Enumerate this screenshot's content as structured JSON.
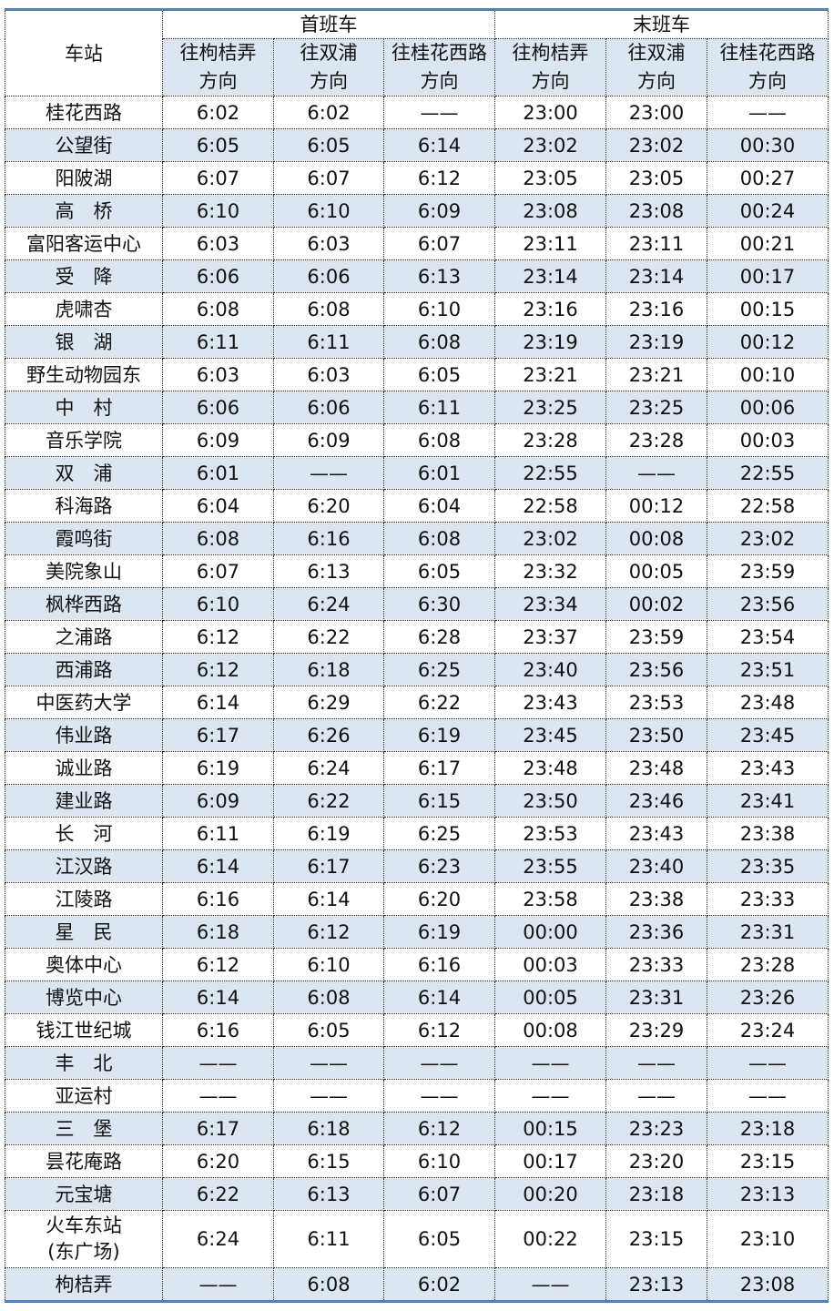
{
  "header": {
    "station": "车站",
    "groups": [
      "首班车",
      "末班车"
    ],
    "directions": [
      [
        "往枸桔弄",
        "方向"
      ],
      [
        "往双浦",
        "方向"
      ],
      [
        "往桂花西路",
        "方向"
      ],
      [
        "往枸桔弄",
        "方向"
      ],
      [
        "往双浦",
        "方向"
      ],
      [
        "往桂花西路",
        "方向"
      ]
    ]
  },
  "rows": [
    {
      "station": "桂花西路",
      "times": [
        "6:02",
        "6:02",
        "——",
        "23:00",
        "23:00",
        "——"
      ]
    },
    {
      "station": "公望街",
      "times": [
        "6:05",
        "6:05",
        "6:14",
        "23:02",
        "23:02",
        "00:30"
      ]
    },
    {
      "station": "阳陂湖",
      "times": [
        "6:07",
        "6:07",
        "6:12",
        "23:05",
        "23:05",
        "00:27"
      ]
    },
    {
      "station": "高　桥",
      "times": [
        "6:10",
        "6:10",
        "6:09",
        "23:08",
        "23:08",
        "00:24"
      ]
    },
    {
      "station": "富阳客运中心",
      "times": [
        "6:03",
        "6:03",
        "6:07",
        "23:11",
        "23:11",
        "00:21"
      ]
    },
    {
      "station": "受　降",
      "times": [
        "6:06",
        "6:06",
        "6:13",
        "23:14",
        "23:14",
        "00:17"
      ]
    },
    {
      "station": "虎啸杏",
      "times": [
        "6:08",
        "6:08",
        "6:10",
        "23:16",
        "23:16",
        "00:15"
      ]
    },
    {
      "station": "银　湖",
      "times": [
        "6:11",
        "6:11",
        "6:08",
        "23:19",
        "23:19",
        "00:12"
      ]
    },
    {
      "station": "野生动物园东",
      "times": [
        "6:03",
        "6:03",
        "6:05",
        "23:21",
        "23:21",
        "00:10"
      ]
    },
    {
      "station": "中　村",
      "times": [
        "6:06",
        "6:06",
        "6:11",
        "23:25",
        "23:25",
        "00:06"
      ]
    },
    {
      "station": "音乐学院",
      "times": [
        "6:09",
        "6:09",
        "6:08",
        "23:28",
        "23:28",
        "00:03"
      ]
    },
    {
      "station": "双　浦",
      "times": [
        "6:01",
        "——",
        "6:01",
        "22:55",
        "——",
        "22:55"
      ]
    },
    {
      "station": "科海路",
      "times": [
        "6:04",
        "6:20",
        "6:04",
        "22:58",
        "00:12",
        "22:58"
      ]
    },
    {
      "station": "霞鸣街",
      "times": [
        "6:08",
        "6:16",
        "6:08",
        "23:02",
        "00:08",
        "23:02"
      ]
    },
    {
      "station": "美院象山",
      "times": [
        "6:07",
        "6:13",
        "6:05",
        "23:32",
        "00:05",
        "23:59"
      ]
    },
    {
      "station": "枫桦西路",
      "times": [
        "6:10",
        "6:24",
        "6:30",
        "23:34",
        "00:02",
        "23:56"
      ]
    },
    {
      "station": "之浦路",
      "times": [
        "6:12",
        "6:22",
        "6:28",
        "23:37",
        "23:59",
        "23:54"
      ]
    },
    {
      "station": "西浦路",
      "times": [
        "6:12",
        "6:18",
        "6:25",
        "23:40",
        "23:56",
        "23:51"
      ]
    },
    {
      "station": "中医药大学",
      "times": [
        "6:14",
        "6:29",
        "6:22",
        "23:43",
        "23:53",
        "23:48"
      ]
    },
    {
      "station": "伟业路",
      "times": [
        "6:17",
        "6:26",
        "6:19",
        "23:45",
        "23:50",
        "23:45"
      ]
    },
    {
      "station": "诚业路",
      "times": [
        "6:19",
        "6:24",
        "6:17",
        "23:48",
        "23:48",
        "23:43"
      ]
    },
    {
      "station": "建业路",
      "times": [
        "6:09",
        "6:22",
        "6:15",
        "23:50",
        "23:46",
        "23:41"
      ]
    },
    {
      "station": "长　河",
      "times": [
        "6:11",
        "6:19",
        "6:25",
        "23:53",
        "23:43",
        "23:38"
      ]
    },
    {
      "station": "江汉路",
      "times": [
        "6:14",
        "6:17",
        "6:23",
        "23:55",
        "23:40",
        "23:35"
      ]
    },
    {
      "station": "江陵路",
      "times": [
        "6:16",
        "6:14",
        "6:20",
        "23:58",
        "23:38",
        "23:33"
      ]
    },
    {
      "station": "星　民",
      "times": [
        "6:18",
        "6:12",
        "6:19",
        "00:00",
        "23:36",
        "23:31"
      ]
    },
    {
      "station": "奥体中心",
      "times": [
        "6:12",
        "6:10",
        "6:16",
        "00:03",
        "23:33",
        "23:28"
      ]
    },
    {
      "station": "博览中心",
      "times": [
        "6:14",
        "6:08",
        "6:14",
        "00:05",
        "23:31",
        "23:26"
      ]
    },
    {
      "station": "钱江世纪城",
      "times": [
        "6:16",
        "6:05",
        "6:12",
        "00:08",
        "23:29",
        "23:24"
      ]
    },
    {
      "station": "丰　北",
      "times": [
        "——",
        "——",
        "——",
        "——",
        "——",
        "——"
      ]
    },
    {
      "station": "亚运村",
      "times": [
        "——",
        "——",
        "——",
        "——",
        "——",
        "——"
      ]
    },
    {
      "station": "三　堡",
      "times": [
        "6:17",
        "6:18",
        "6:12",
        "00:15",
        "23:23",
        "23:18"
      ]
    },
    {
      "station": "昙花庵路",
      "times": [
        "6:20",
        "6:15",
        "6:10",
        "00:17",
        "23:20",
        "23:15"
      ]
    },
    {
      "station": "元宝塘",
      "times": [
        "6:22",
        "6:13",
        "6:07",
        "00:20",
        "23:18",
        "23:13"
      ]
    },
    {
      "station": "火车东站",
      "station_line2": "(东广场)",
      "times": [
        "6:24",
        "6:11",
        "6:05",
        "00:22",
        "23:15",
        "23:10"
      ]
    },
    {
      "station": "枸桔弄",
      "times": [
        "——",
        "6:08",
        "6:02",
        "——",
        "23:13",
        "23:08"
      ]
    }
  ],
  "colors": {
    "accent_border": "#4f81bd",
    "shade": "#dce6f1"
  }
}
